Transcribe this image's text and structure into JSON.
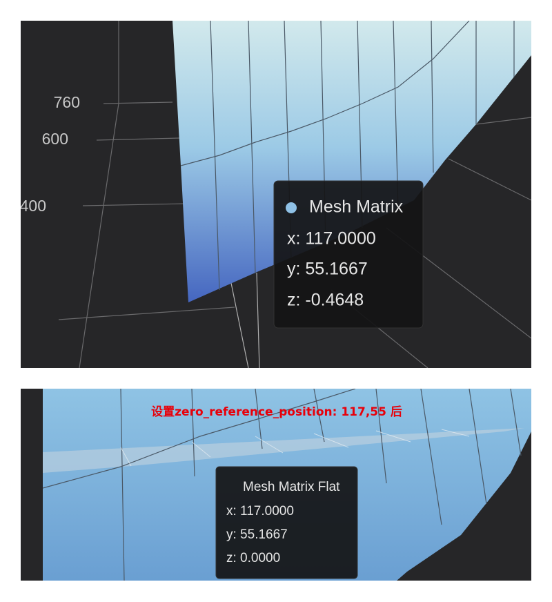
{
  "panels": [
    {
      "axis_labels": [
        "760",
        "600",
        "400"
      ],
      "tooltip": {
        "series": "Mesh Matrix",
        "lines": [
          "x: 117.0000",
          "y: 55.1667",
          "z: -0.4648"
        ]
      }
    },
    {
      "annotation": "设置zero_reference_position: 117,55 后",
      "tooltip": {
        "series": "Mesh Matrix Flat",
        "lines": [
          "x: 117.0000",
          "y: 55.1667",
          "z: 0.0000"
        ]
      }
    }
  ]
}
